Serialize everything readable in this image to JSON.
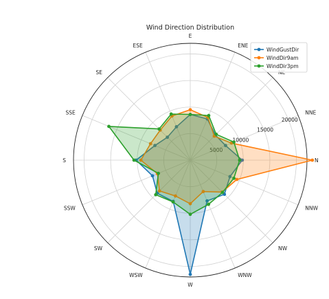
{
  "chart_data": {
    "type": "radar",
    "title": "Wind Direction Distribution",
    "categories": [
      "N",
      "NNE",
      "NE",
      "ENE",
      "E",
      "ESE",
      "SE",
      "SSE",
      "S",
      "SSW",
      "SW",
      "WSW",
      "W",
      "WNW",
      "NW",
      "NNW"
    ],
    "angles_deg": [
      0,
      22.5,
      45,
      67.5,
      90,
      112.5,
      135,
      157.5,
      180,
      202.5,
      225,
      247.5,
      270,
      292.5,
      315,
      337.5
    ],
    "rmax": 22000,
    "r_ticks": [
      5000,
      10000,
      15000,
      20000
    ],
    "r_tick_labels": [
      "5000",
      "10000",
      "15000",
      "20000"
    ],
    "grid": true,
    "legend_position": "top-right",
    "series": [
      {
        "name": "WindGustDir",
        "color": "#1f77b4",
        "values": [
          9800,
          7200,
          6700,
          8400,
          8600,
          6800,
          6100,
          7200,
          10200,
          7700,
          8800,
          8400,
          21500,
          8300,
          9100,
          8100
        ]
      },
      {
        "name": "WindDir9am",
        "color": "#ff7f0e",
        "values": [
          23000,
          8400,
          6400,
          8700,
          9500,
          9000,
          8000,
          8100,
          9300,
          6700,
          8200,
          7300,
          8200,
          6400,
          8500,
          9500
        ]
      },
      {
        "name": "WindDir3pm",
        "color": "#2ca02c",
        "values": [
          9300,
          8900,
          6900,
          9100,
          8600,
          9400,
          8300,
          16600,
          10600,
          6500,
          9200,
          8500,
          10200,
          9000,
          8600,
          8900
        ]
      }
    ]
  }
}
